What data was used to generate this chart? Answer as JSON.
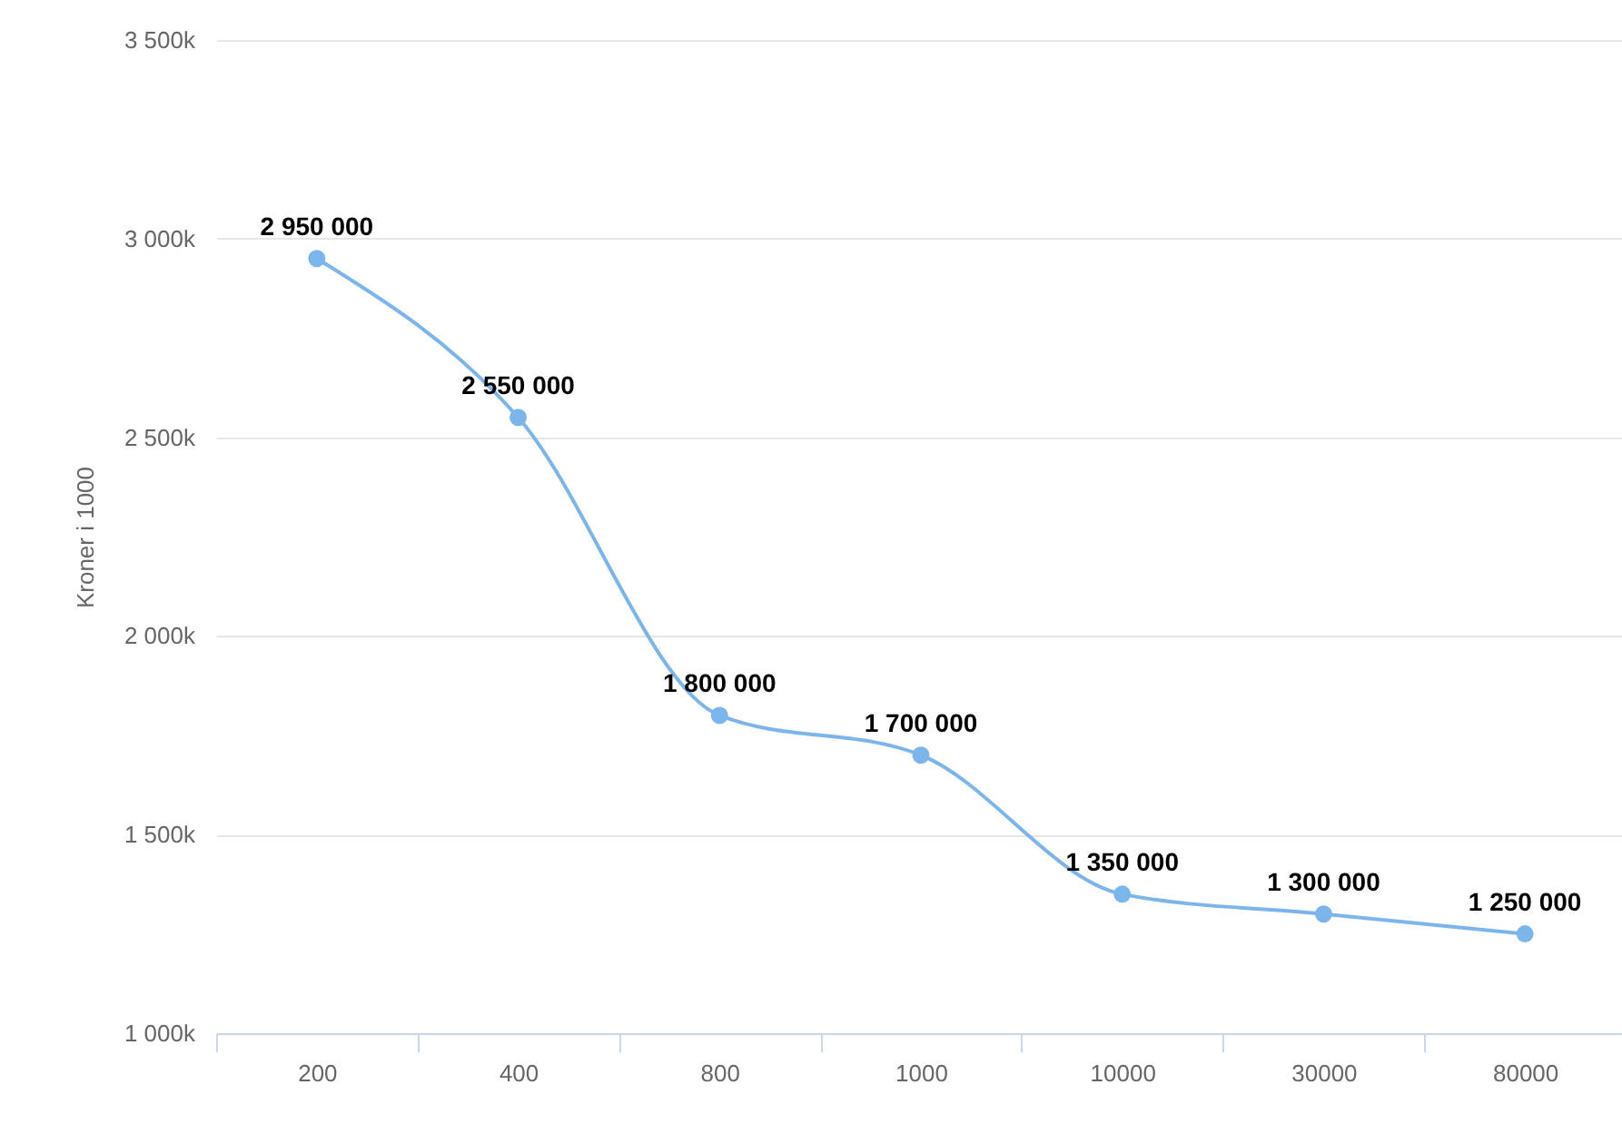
{
  "chart_data": {
    "type": "line",
    "ylabel": "Kroner i 1000",
    "categories": [
      "200",
      "400",
      "800",
      "1000",
      "10000",
      "30000",
      "80000"
    ],
    "series": [
      {
        "color": "#7cb5ec",
        "values": [
          2950000,
          2550000,
          1800000,
          1700000,
          1350000,
          1300000,
          1250000
        ]
      }
    ],
    "ylim": [
      1000000,
      3500000
    ],
    "yticks": [
      {
        "value": 1000000,
        "label": "1 000k"
      },
      {
        "value": 1500000,
        "label": "1 500k"
      },
      {
        "value": 2000000,
        "label": "2 000k"
      },
      {
        "value": 2500000,
        "label": "2 500k"
      },
      {
        "value": 3000000,
        "label": "3 000k"
      },
      {
        "value": 3500000,
        "label": "3 500k"
      }
    ],
    "grid": "y",
    "marker": "circle",
    "line_style": "solid",
    "data_labels": true
  }
}
